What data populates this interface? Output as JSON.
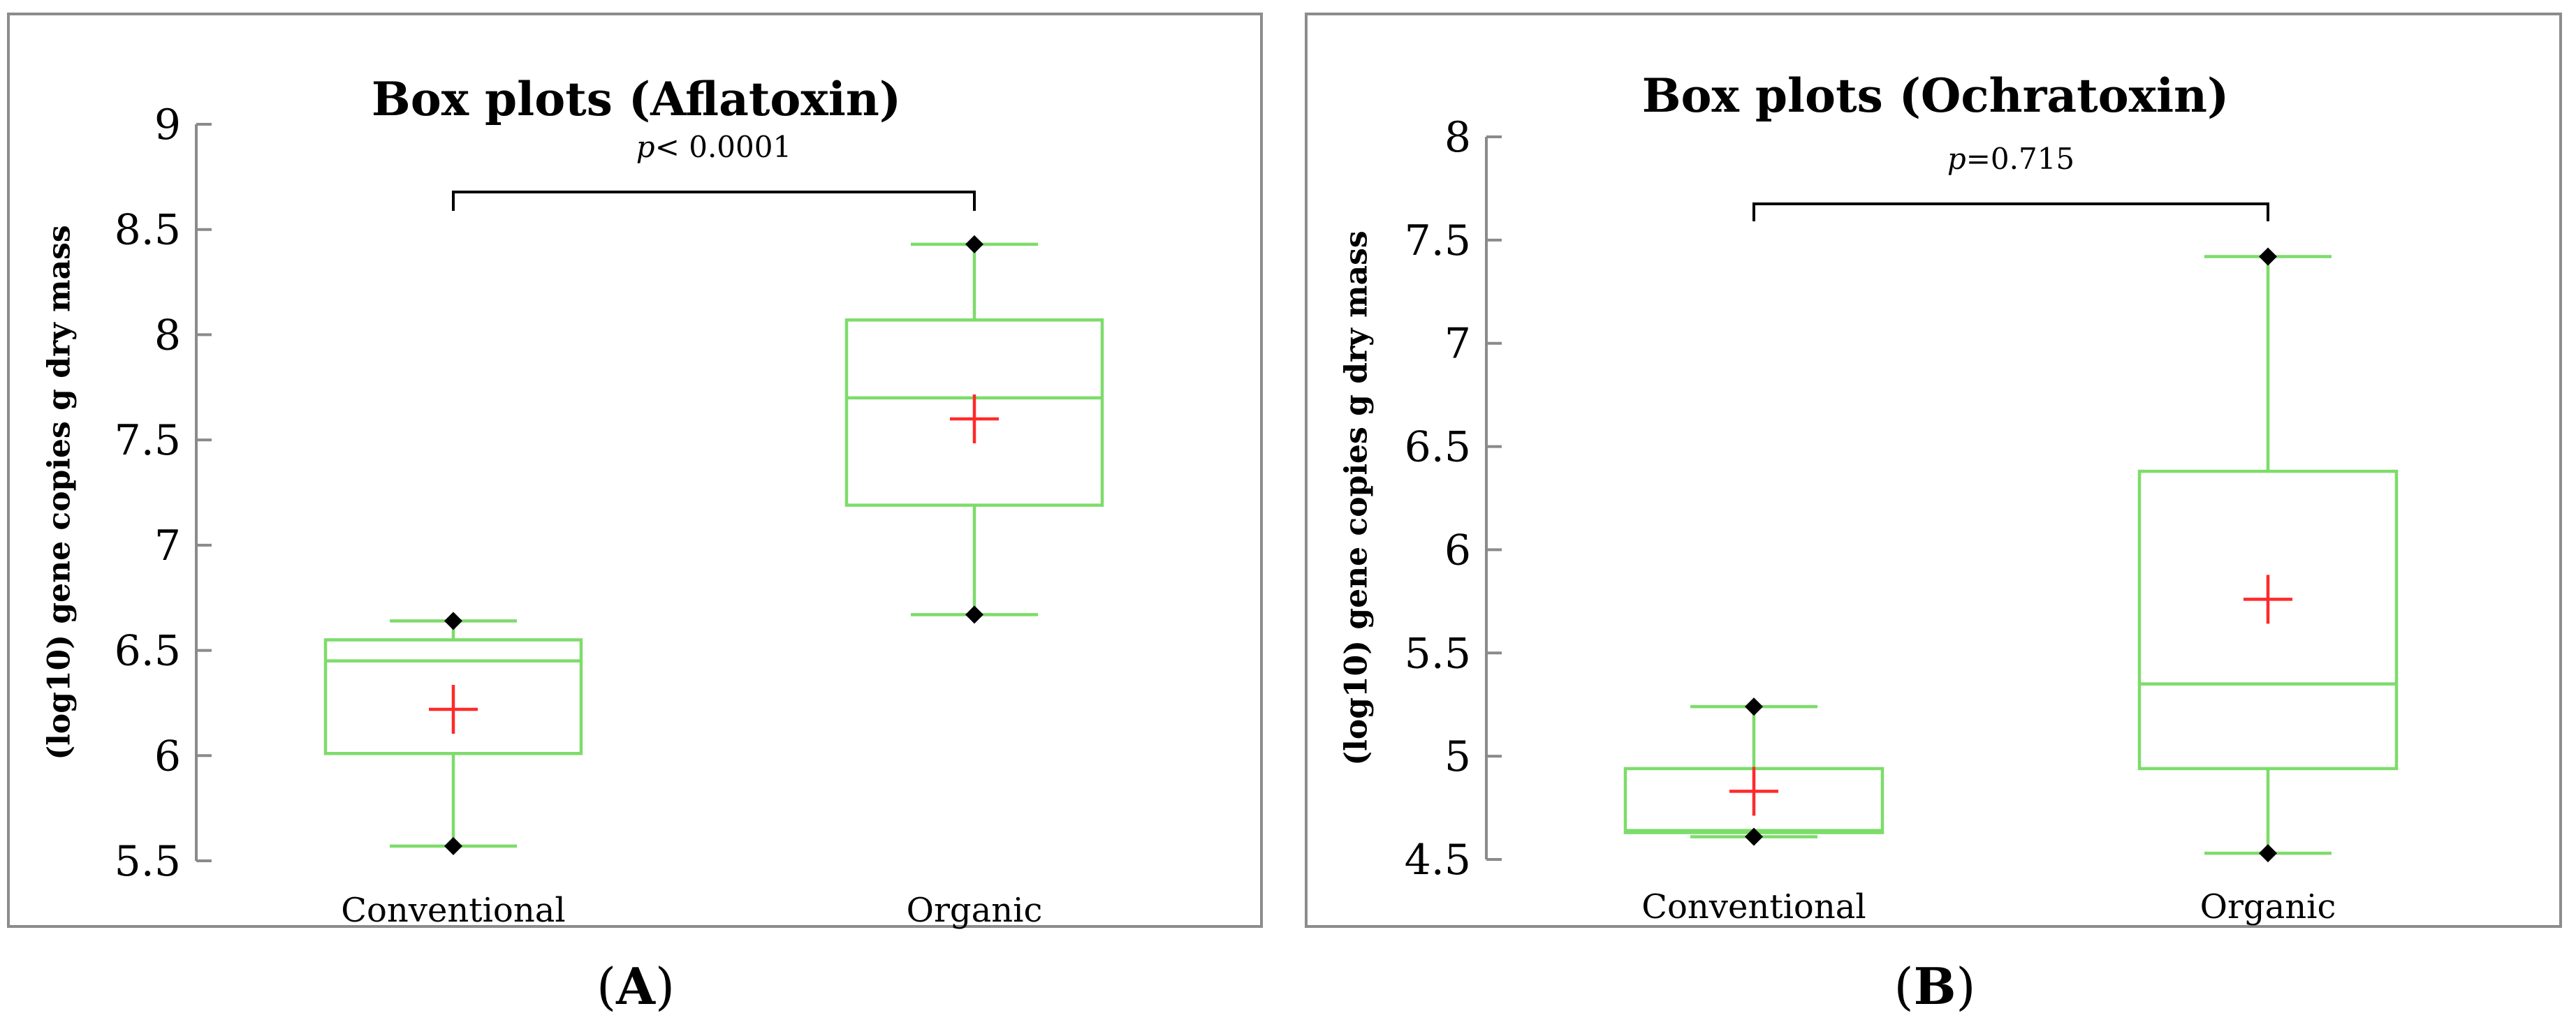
{
  "colors": {
    "box": "#7ddc6a",
    "mean": "#ff2a2a",
    "axis": "#8a8a8a",
    "frame": "#8c8c8c",
    "text": "#000000"
  },
  "chart_data": [
    {
      "type": "box",
      "panel_label": "A",
      "title": "Box plots (Aflatoxin)",
      "ylabel": "(log10) gene copies g dry mass",
      "ylim": [
        5.5,
        9
      ],
      "yticks": [
        "5.5",
        "6",
        "6.5",
        "7",
        "7.5",
        "8",
        "8.5",
        "9"
      ],
      "categories": [
        "Conventional",
        "Organic"
      ],
      "boxes": [
        {
          "category": "Conventional",
          "min": 5.57,
          "q1": 6.01,
          "median": 6.45,
          "q3": 6.55,
          "max": 6.64,
          "mean": 6.22
        },
        {
          "category": "Organic",
          "min": 6.67,
          "q1": 7.19,
          "median": 7.7,
          "q3": 8.07,
          "max": 8.43,
          "mean": 7.6
        }
      ],
      "significance": {
        "prefix": "p",
        "text": "< 0.0001",
        "y": 8.67
      }
    },
    {
      "type": "box",
      "panel_label": "B",
      "title": "Box plots (Ochratoxin)",
      "ylabel": "(log10) gene copies g dry mass",
      "ylim": [
        4.5,
        8
      ],
      "yticks": [
        "4.5",
        "5",
        "5.5",
        "6",
        "6.5",
        "7",
        "7.5",
        "8"
      ],
      "categories": [
        "Conventional",
        "Organic"
      ],
      "boxes": [
        {
          "category": "Conventional",
          "min": 4.61,
          "q1": 4.63,
          "median": 4.64,
          "q3": 4.94,
          "max": 5.24,
          "mean": 4.83
        },
        {
          "category": "Organic",
          "min": 4.53,
          "q1": 4.94,
          "median": 5.35,
          "q3": 6.38,
          "max": 7.42,
          "mean": 5.76
        }
      ],
      "significance": {
        "prefix": "p",
        "text": "=0.715",
        "y": 7.67
      }
    }
  ]
}
